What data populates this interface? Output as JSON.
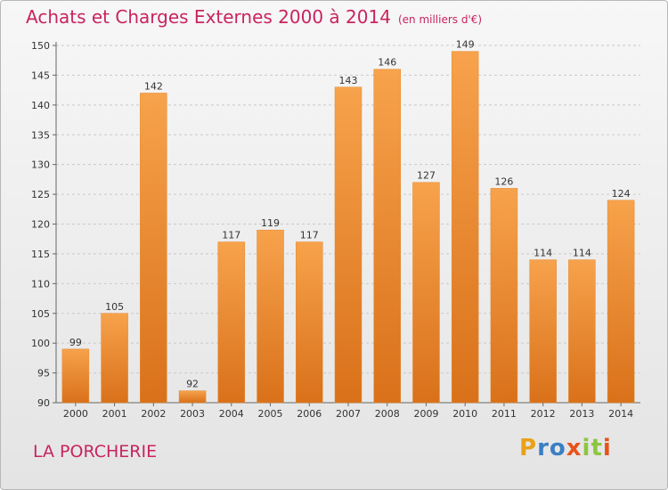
{
  "title": "Achats et Charges Externes 2000 à 2014",
  "subtitle": "(en milliers d'€)",
  "place": "LA PORCHERIE",
  "logo": {
    "letters": [
      "P",
      "r",
      "o",
      "x",
      "i",
      "t",
      "i"
    ],
    "colors": [
      "#e8a21a",
      "#3a7fc4",
      "#3a7fc4",
      "#e8541a",
      "#8cc63e",
      "#8cc63e",
      "#e8541a"
    ]
  },
  "chart_data": {
    "type": "bar",
    "title": "Achats et Charges Externes 2000 à 2014",
    "xlabel": "",
    "ylabel": "",
    "categories": [
      "2000",
      "2001",
      "2002",
      "2003",
      "2004",
      "2005",
      "2006",
      "2007",
      "2008",
      "2009",
      "2010",
      "2011",
      "2012",
      "2013",
      "2014"
    ],
    "values": [
      99,
      105,
      142,
      92,
      117,
      119,
      117,
      143,
      146,
      127,
      149,
      126,
      114,
      114,
      124
    ],
    "ylim": [
      90,
      150
    ],
    "yticks": [
      90,
      95,
      100,
      105,
      110,
      115,
      120,
      125,
      130,
      135,
      140,
      145,
      150
    ],
    "grid": true,
    "bar_color": "#f0922e"
  }
}
